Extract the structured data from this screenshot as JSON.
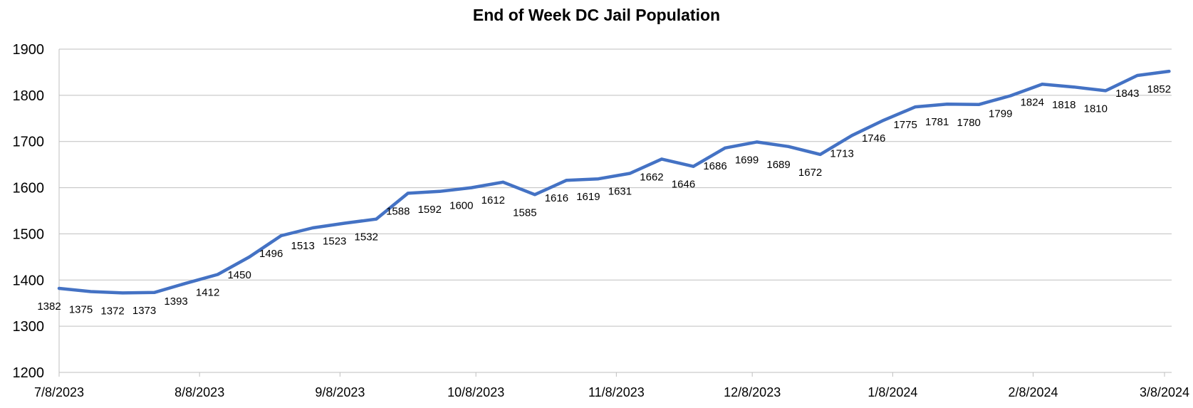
{
  "chart_data": {
    "type": "line",
    "title": "End of Week DC Jail Population",
    "xlabel": "",
    "ylabel": "",
    "ylim": [
      1200,
      1900
    ],
    "y_ticks": [
      "1200",
      "1300",
      "1400",
      "1500",
      "1600",
      "1700",
      "1800",
      "1900"
    ],
    "x_ticks": [
      "7/8/2023",
      "8/8/2023",
      "9/8/2023",
      "10/8/2023",
      "11/8/2023",
      "12/8/2023",
      "1/8/2024",
      "2/8/2024",
      "3/8/2024"
    ],
    "grid": true,
    "legend": "none",
    "line_color": "#4472C4",
    "x": [
      "7/8/2023",
      "7/15/2023",
      "7/22/2023",
      "7/29/2023",
      "8/5/2023",
      "8/12/2023",
      "8/19/2023",
      "8/26/2023",
      "9/2/2023",
      "9/9/2023",
      "9/16/2023",
      "9/23/2023",
      "9/30/2023",
      "10/7/2023",
      "10/14/2023",
      "10/21/2023",
      "10/28/2023",
      "11/4/2023",
      "11/11/2023",
      "11/18/2023",
      "11/25/2023",
      "12/2/2023",
      "12/9/2023",
      "12/16/2023",
      "12/23/2023",
      "12/30/2023",
      "1/6/2024",
      "1/13/2024",
      "1/20/2024",
      "1/27/2024",
      "2/3/2024",
      "2/10/2024",
      "2/17/2024",
      "2/24/2024",
      "3/2/2024",
      "3/9/2024"
    ],
    "values": [
      1382,
      1375,
      1372,
      1373,
      1393,
      1412,
      1450,
      1496,
      1513,
      1523,
      1532,
      1588,
      1592,
      1600,
      1612,
      1585,
      1616,
      1619,
      1631,
      1662,
      1646,
      1686,
      1699,
      1689,
      1672,
      1713,
      1746,
      1775,
      1781,
      1780,
      1799,
      1824,
      1818,
      1810,
      1843,
      1852
    ]
  }
}
